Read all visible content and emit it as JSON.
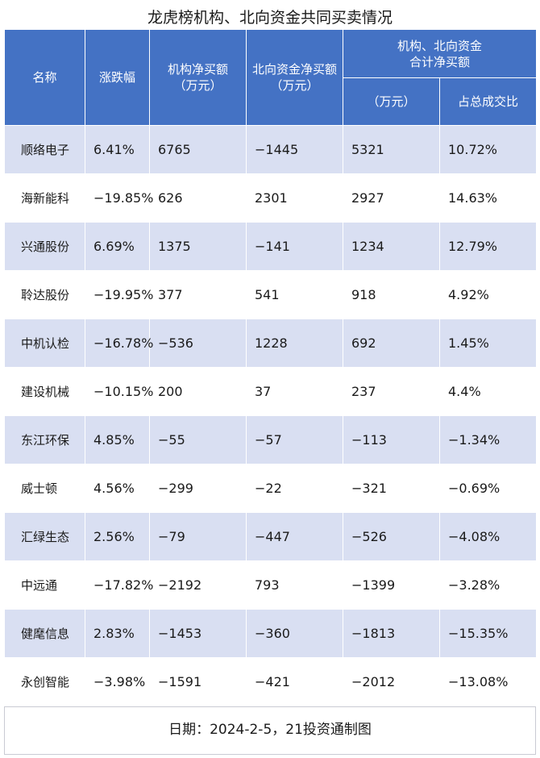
{
  "title": "龙虎榜机构、北向资金共同买卖情况",
  "header": {
    "name": "名称",
    "change": "涨跌幅",
    "inst": "机构净买额\n（万元）",
    "north": "北向资金净买额（万元）",
    "combined": "机构、北向资金\n合计净买额",
    "combined_unit": "（万元）",
    "share": "占总成交比"
  },
  "rows": [
    {
      "name": "顺络电子",
      "change": "6.41%",
      "inst": "6765",
      "north": "−1445",
      "total": "5321",
      "share": "10.72%"
    },
    {
      "name": "海新能科",
      "change": "−19.85%",
      "inst": "626",
      "north": "2301",
      "total": "2927",
      "share": "14.63%"
    },
    {
      "name": "兴通股份",
      "change": "6.69%",
      "inst": "1375",
      "north": "−141",
      "total": "1234",
      "share": "12.79%"
    },
    {
      "name": "聆达股份",
      "change": "−19.95%",
      "inst": "377",
      "north": "541",
      "total": "918",
      "share": "4.92%"
    },
    {
      "name": "中机认检",
      "change": "−16.78%",
      "inst": "−536",
      "north": "1228",
      "total": "692",
      "share": "1.45%"
    },
    {
      "name": "建设机械",
      "change": "−10.15%",
      "inst": "200",
      "north": "37",
      "total": "237",
      "share": "4.4%"
    },
    {
      "name": "东江环保",
      "change": "4.85%",
      "inst": "−55",
      "north": "−57",
      "total": "−113",
      "share": "−1.34%"
    },
    {
      "name": "威士顿",
      "change": "4.56%",
      "inst": "−299",
      "north": "−22",
      "total": "−321",
      "share": "−0.69%"
    },
    {
      "name": "汇绿生态",
      "change": "2.56%",
      "inst": "−79",
      "north": "−447",
      "total": "−526",
      "share": "−4.08%"
    },
    {
      "name": "中远通",
      "change": "−17.82%",
      "inst": "−2192",
      "north": "793",
      "total": "−1399",
      "share": "−3.28%"
    },
    {
      "name": "健麾信息",
      "change": "2.83%",
      "inst": "−1453",
      "north": "−360",
      "total": "−1813",
      "share": "−15.35%"
    },
    {
      "name": "永创智能",
      "change": "−3.98%",
      "inst": "−1591",
      "north": "−421",
      "total": "−2012",
      "share": "−13.08%"
    }
  ],
  "footer": "日期：2024-2-5，21投资通制图"
}
